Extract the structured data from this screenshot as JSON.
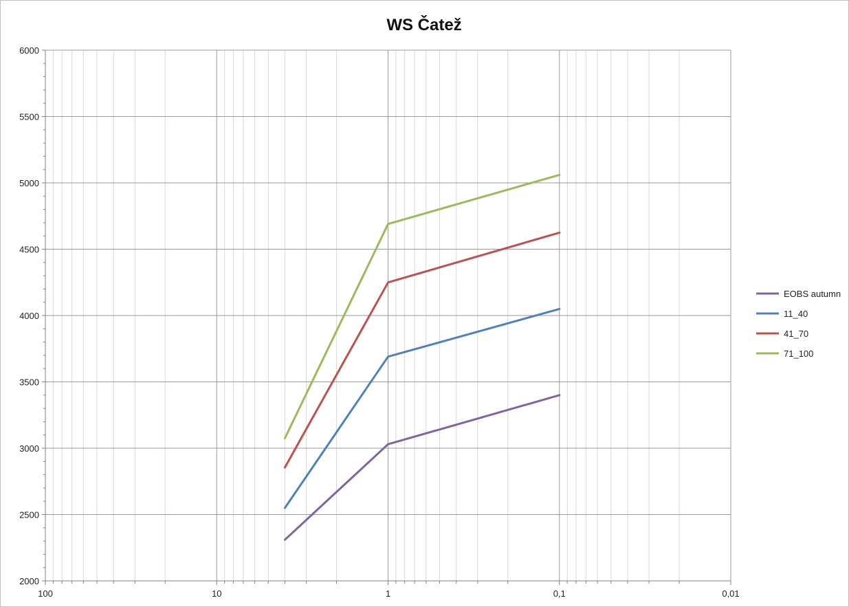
{
  "chart_data": {
    "type": "line",
    "title": "WS Čatež",
    "xlabel": "",
    "ylabel": "",
    "x_scale": "log",
    "x_reversed": true,
    "xlim": [
      100,
      0.01
    ],
    "ylim": [
      2000,
      6000
    ],
    "x_ticks": [
      "100",
      "10",
      "1",
      "0,1",
      "0,01"
    ],
    "y_ticks": [
      "2000",
      "2500",
      "3000",
      "3500",
      "4000",
      "4500",
      "5000",
      "5500",
      "6000"
    ],
    "grid": true,
    "legend_position": "right",
    "x": [
      4,
      1,
      0.1
    ],
    "series": [
      {
        "name": "EOBS autumn",
        "color": "#8064a2",
        "values": [
          2310,
          3030,
          3400
        ]
      },
      {
        "name": "11_40",
        "color": "#4f81bd",
        "values": [
          2550,
          3690,
          4050
        ]
      },
      {
        "name": "41_70",
        "color": "#c0504d",
        "values": [
          2855,
          4250,
          4625
        ]
      },
      {
        "name": "71_100",
        "color": "#9bbb59",
        "values": [
          3075,
          4690,
          5060
        ]
      }
    ]
  }
}
